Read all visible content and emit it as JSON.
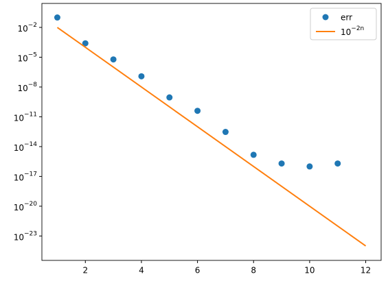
{
  "chart_data": {
    "type": "scatter",
    "yscale": "log",
    "legend": "upper right",
    "xlim": [
      0.45,
      12.55
    ],
    "ylim": [
      3.5e-26,
      2.6
    ],
    "xticks": [
      2,
      4,
      6,
      8,
      10,
      12
    ],
    "yticks": [
      {
        "value": 0.01,
        "label": "10−2"
      },
      {
        "value": 1e-05,
        "label": "10−5"
      },
      {
        "value": 1e-08,
        "label": "10−8"
      },
      {
        "value": 1e-11,
        "label": "10−11"
      },
      {
        "value": 1e-14,
        "label": "10−14"
      },
      {
        "value": 1e-17,
        "label": "10−17"
      },
      {
        "value": 1e-20,
        "label": "10−20"
      },
      {
        "value": 1e-23,
        "label": "10−23"
      }
    ],
    "series": [
      {
        "name": "err",
        "mode": "markers",
        "color": "#1f77b4",
        "x": [
          1,
          2,
          3,
          4,
          5,
          6,
          7,
          8,
          9,
          10,
          11
        ],
        "values": [
          0.1,
          0.00025,
          6e-06,
          1.2e-07,
          9e-10,
          4e-11,
          3e-13,
          1.5e-15,
          2e-16,
          1e-16,
          2e-16
        ]
      },
      {
        "name": "10−2n",
        "mode": "line",
        "color": "#ff7f0e",
        "x": [
          1,
          2,
          3,
          4,
          5,
          6,
          7,
          8,
          9,
          10,
          11,
          12
        ],
        "values": [
          0.01,
          0.0001,
          1e-06,
          1e-08,
          1e-10,
          1e-12,
          1e-14,
          1e-16,
          1e-18,
          1e-20,
          1e-22,
          1e-24
        ]
      }
    ]
  }
}
